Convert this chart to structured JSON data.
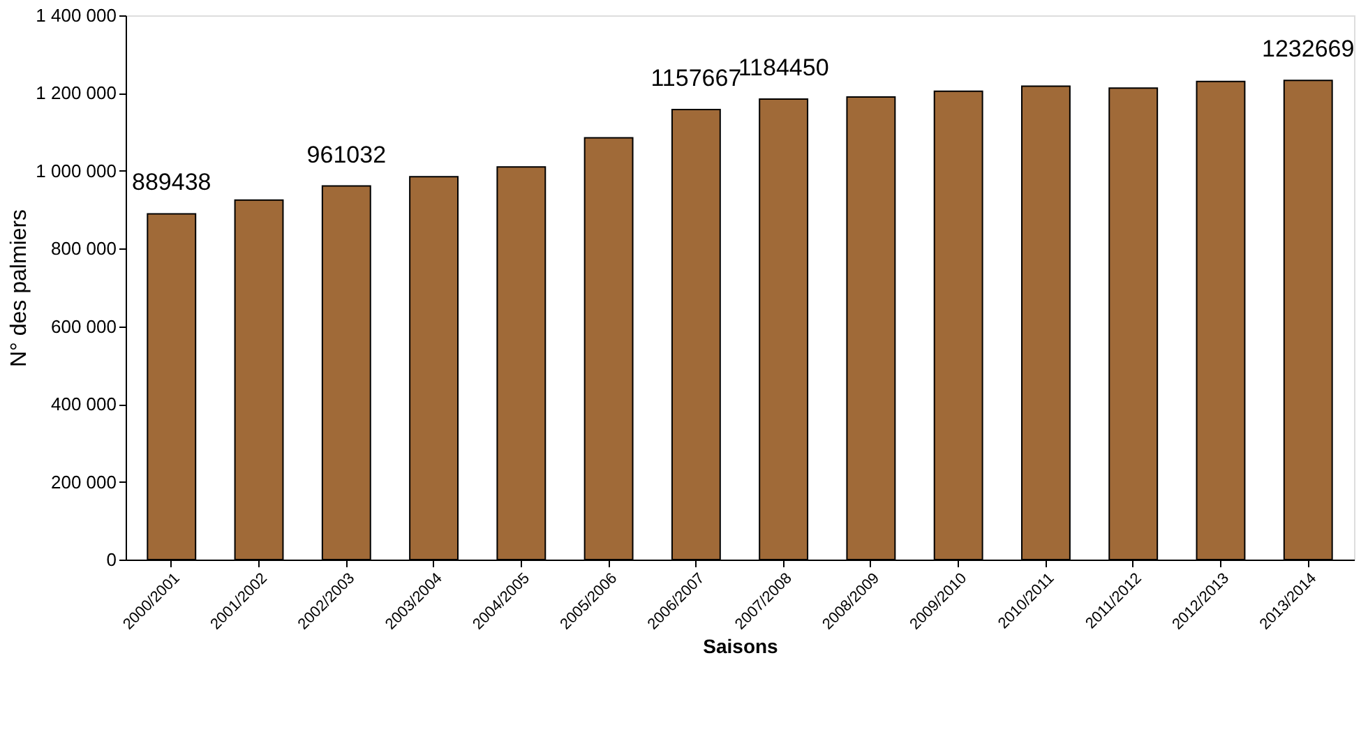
{
  "chart_data": {
    "type": "bar",
    "xlabel": "Saisons",
    "ylabel": "N° des palmiers",
    "categories": [
      "2000/2001",
      "2001/2002",
      "2002/2003",
      "2003/2004",
      "2004/2005",
      "2005/2006",
      "2006/2007",
      "2007/2008",
      "2008/2009",
      "2009/2010",
      "2010/2011",
      "2011/2012",
      "2012/2013",
      "2013/2014"
    ],
    "values": [
      889438,
      925000,
      961032,
      985000,
      1010000,
      1085000,
      1157667,
      1184450,
      1190000,
      1205000,
      1218000,
      1213000,
      1230000,
      1232669
    ],
    "value_labels": [
      "889438",
      null,
      "961032",
      null,
      null,
      null,
      "1157667",
      "1184450",
      null,
      null,
      null,
      null,
      null,
      "1232669"
    ],
    "color": "#a06a38",
    "ylim": [
      0,
      1400000
    ],
    "yticks": [
      {
        "value": 0,
        "label": "0"
      },
      {
        "value": 200000,
        "label": "200 000"
      },
      {
        "value": 400000,
        "label": "400 000"
      },
      {
        "value": 600000,
        "label": "600 000"
      },
      {
        "value": 800000,
        "label": "800 000"
      },
      {
        "value": 1000000,
        "label": "1 000 000"
      },
      {
        "value": 1200000,
        "label": "1 200 000"
      },
      {
        "value": 1400000,
        "label": "1 400 000"
      }
    ],
    "grid": false
  }
}
